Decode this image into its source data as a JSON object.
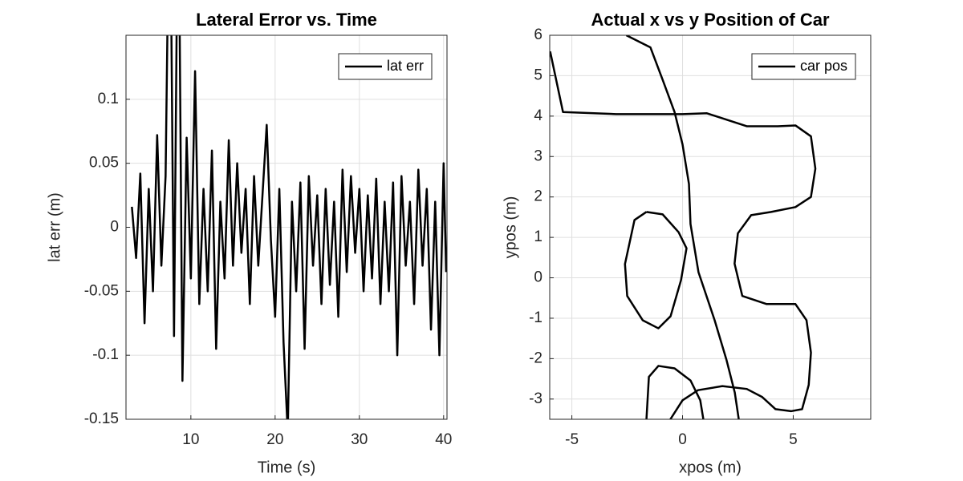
{
  "chart_data": [
    {
      "type": "line",
      "title": "Lateral Error vs. Time",
      "xlabel": "Time (s)",
      "ylabel": "lat err (m)",
      "x": [
        3.0,
        3.5,
        4.0,
        4.5,
        5.0,
        5.5,
        6.0,
        6.5,
        7.0,
        7.5,
        8.0,
        8.5,
        9.0,
        9.5,
        10.0,
        10.5,
        11.0,
        11.5,
        12.0,
        12.5,
        13.0,
        13.5,
        14.0,
        14.5,
        15.0,
        15.5,
        16.0,
        16.5,
        17.0,
        17.5,
        18.0,
        18.5,
        19.0,
        19.5,
        20.0,
        20.5,
        21.0,
        21.5,
        22.0,
        22.5,
        23.0,
        23.5,
        24.0,
        24.5,
        25.0,
        25.5,
        26.0,
        26.5,
        27.0,
        27.5,
        28.0,
        28.5,
        29.0,
        29.5,
        30.0,
        30.5,
        31.0,
        31.5,
        32.0,
        32.5,
        33.0,
        33.5,
        34.0,
        34.5,
        35.0,
        35.5,
        36.0,
        36.5,
        37.0,
        37.5,
        38.0,
        38.5,
        39.0,
        39.5,
        40.0,
        40.3
      ],
      "series": [
        {
          "name": "lat err",
          "color": "#000000",
          "values": [
            0.016,
            -0.024,
            0.042,
            -0.075,
            0.03,
            -0.05,
            0.072,
            -0.03,
            0.04,
            0.3,
            -0.085,
            0.3,
            -0.12,
            0.07,
            -0.04,
            0.122,
            -0.06,
            0.03,
            -0.05,
            0.06,
            -0.095,
            0.02,
            -0.04,
            0.068,
            -0.03,
            0.05,
            -0.02,
            0.03,
            -0.06,
            0.04,
            -0.03,
            0.025,
            0.08,
            -0.01,
            -0.07,
            0.03,
            -0.09,
            -0.16,
            0.02,
            -0.05,
            0.035,
            -0.095,
            0.04,
            -0.03,
            0.025,
            -0.06,
            0.03,
            -0.045,
            0.02,
            -0.07,
            0.045,
            -0.035,
            0.04,
            -0.02,
            0.03,
            -0.05,
            0.025,
            -0.04,
            0.038,
            -0.06,
            0.02,
            -0.05,
            0.035,
            -0.1,
            0.04,
            -0.03,
            0.02,
            -0.06,
            0.045,
            -0.03,
            0.03,
            -0.08,
            0.02,
            -0.1,
            0.05,
            -0.035
          ]
        }
      ],
      "xlim": [
        2.3,
        40.4
      ],
      "xticks": [
        10,
        20,
        30,
        40
      ],
      "ylim": [
        -0.15,
        0.15
      ],
      "yticks": [
        -0.15,
        -0.1,
        -0.05,
        0,
        0.05,
        0.1
      ],
      "grid": true,
      "legend": "upper right"
    },
    {
      "type": "line",
      "title": "Actual x vs y Position of Car",
      "xlabel": "xpos (m)",
      "ylabel": "ypos (m)",
      "series": [
        {
          "name": "car pos",
          "color": "#000000",
          "x": [
            -5.98,
            -5.4,
            -3.0,
            0.0,
            1.1,
            2.9,
            4.3,
            5.1,
            5.8,
            6.0,
            5.8,
            5.1,
            4.0,
            3.1,
            2.5,
            2.35,
            2.7,
            3.8,
            5.1,
            5.6,
            5.8,
            5.7,
            5.4,
            4.9,
            4.2,
            3.6,
            2.9,
            1.8,
            0.7,
            0.0,
            -0.55,
            null,
            -1.63,
            -1.52,
            -1.09,
            -0.36,
            0.36,
            0.8,
            0.94,
            null,
            -1.63,
            -2.17,
            -2.6,
            -2.5,
            -1.8,
            -1.09,
            -0.54,
            -0.07,
            0.18,
            -0.18,
            -0.9,
            -1.63,
            null,
            -2.54,
            -1.45,
            -0.9,
            -0.36,
            0.0,
            0.29,
            0.36,
            0.72,
            1.45,
            1.99,
            2.36,
            2.54
          ],
          "values": [
            5.6,
            4.1,
            4.05,
            4.05,
            4.07,
            3.75,
            3.75,
            3.77,
            3.5,
            2.7,
            2.0,
            1.75,
            1.63,
            1.55,
            1.1,
            0.35,
            -0.45,
            -0.65,
            -0.65,
            -1.05,
            -1.85,
            -2.65,
            -3.25,
            -3.3,
            -3.25,
            -2.95,
            -2.75,
            -2.68,
            -2.78,
            -3.03,
            -3.5,
            null,
            -3.5,
            -2.45,
            -2.18,
            -2.24,
            -2.54,
            -3.03,
            -3.5,
            null,
            1.63,
            1.43,
            0.34,
            -0.45,
            -1.05,
            -1.25,
            -0.95,
            -0.06,
            0.73,
            1.13,
            1.57,
            1.63,
            null,
            6.0,
            5.7,
            4.9,
            4.1,
            3.3,
            2.32,
            1.33,
            0.14,
            -1.05,
            -2.04,
            -2.84,
            -3.5
          ]
        }
      ],
      "xlim": [
        -6,
        8.5
      ],
      "xticks": [
        -5,
        0,
        5
      ],
      "ylim": [
        -3.5,
        6
      ],
      "yticks": [
        -3,
        -2,
        -1,
        0,
        1,
        2,
        3,
        4,
        5,
        6
      ],
      "grid": true,
      "legend": "upper right"
    }
  ]
}
